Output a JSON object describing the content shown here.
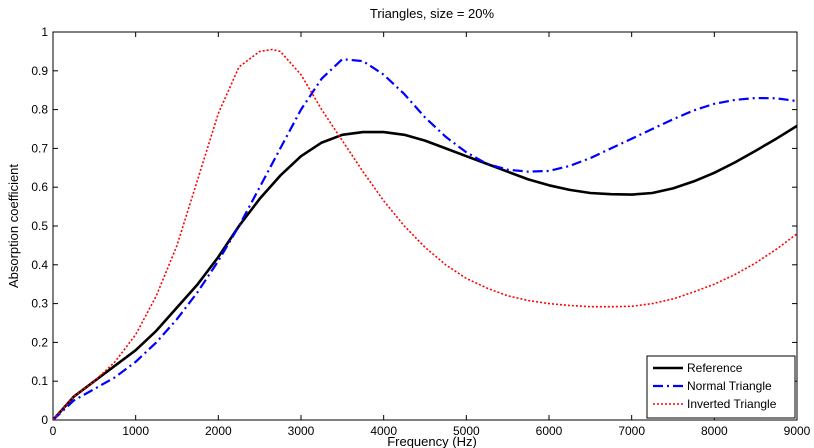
{
  "chart_data": {
    "type": "line",
    "title": "Triangles, size = 20%",
    "xlabel": "Frequency (Hz)",
    "ylabel": "Absorption coefficient",
    "xlim": [
      0,
      9000
    ],
    "ylim": [
      0,
      1
    ],
    "xticks": [
      0,
      1000,
      2000,
      3000,
      4000,
      5000,
      6000,
      7000,
      8000,
      9000
    ],
    "yticks": [
      0,
      0.1,
      0.2,
      0.3,
      0.4,
      0.5,
      0.6,
      0.7,
      0.8,
      0.9,
      1
    ],
    "xtick_labels": [
      "0",
      "1000",
      "2000",
      "3000",
      "4000",
      "5000",
      "6000",
      "7000",
      "8000",
      "9000"
    ],
    "ytick_labels": [
      "0",
      "0.1",
      "0.2",
      "0.3",
      "0.4",
      "0.5",
      "0.6",
      "0.7",
      "0.8",
      "0.9",
      "1"
    ],
    "grid": false,
    "legend_position": "bottom-right",
    "series": [
      {
        "name": "Reference",
        "color": "#000000",
        "style": "solid",
        "x": [
          0,
          250,
          500,
          750,
          1000,
          1250,
          1500,
          1750,
          2000,
          2250,
          2500,
          2750,
          3000,
          3250,
          3500,
          3750,
          4000,
          4250,
          4500,
          4750,
          5000,
          5250,
          5500,
          5750,
          6000,
          6250,
          6500,
          6750,
          7000,
          7250,
          7500,
          7750,
          8000,
          8250,
          8500,
          8750,
          9000
        ],
        "y": [
          0,
          0.06,
          0.1,
          0.14,
          0.18,
          0.23,
          0.29,
          0.35,
          0.42,
          0.5,
          0.57,
          0.63,
          0.68,
          0.715,
          0.735,
          0.742,
          0.742,
          0.735,
          0.72,
          0.7,
          0.68,
          0.66,
          0.64,
          0.62,
          0.605,
          0.593,
          0.585,
          0.582,
          0.581,
          0.585,
          0.597,
          0.615,
          0.637,
          0.664,
          0.694,
          0.725,
          0.758
        ]
      },
      {
        "name": "Normal Triangle",
        "color": "#0000ff",
        "style": "dashdot",
        "x": [
          0,
          250,
          500,
          750,
          1000,
          1250,
          1500,
          1750,
          2000,
          2250,
          2500,
          2750,
          3000,
          3250,
          3500,
          3750,
          4000,
          4250,
          4500,
          4750,
          5000,
          5250,
          5500,
          5750,
          6000,
          6250,
          6500,
          6750,
          7000,
          7250,
          7500,
          7750,
          8000,
          8250,
          8500,
          8750,
          9000
        ],
        "y": [
          0,
          0.05,
          0.08,
          0.11,
          0.15,
          0.2,
          0.26,
          0.33,
          0.41,
          0.5,
          0.6,
          0.7,
          0.8,
          0.88,
          0.93,
          0.925,
          0.89,
          0.84,
          0.78,
          0.73,
          0.69,
          0.66,
          0.645,
          0.64,
          0.642,
          0.655,
          0.675,
          0.7,
          0.725,
          0.75,
          0.775,
          0.798,
          0.815,
          0.825,
          0.83,
          0.829,
          0.822
        ]
      },
      {
        "name": "Inverted Triangle",
        "color": "#ff0000",
        "style": "dotted",
        "x": [
          0,
          250,
          500,
          750,
          1000,
          1250,
          1500,
          1750,
          2000,
          2250,
          2500,
          2650,
          2750,
          3000,
          3250,
          3500,
          3750,
          4000,
          4250,
          4500,
          4750,
          5000,
          5250,
          5500,
          5750,
          6000,
          6250,
          6500,
          6750,
          7000,
          7250,
          7500,
          7750,
          8000,
          8250,
          8500,
          8750,
          9000
        ],
        "y": [
          0,
          0.06,
          0.1,
          0.15,
          0.22,
          0.32,
          0.45,
          0.62,
          0.79,
          0.91,
          0.95,
          0.955,
          0.95,
          0.89,
          0.8,
          0.72,
          0.64,
          0.565,
          0.5,
          0.445,
          0.4,
          0.365,
          0.34,
          0.32,
          0.308,
          0.3,
          0.295,
          0.292,
          0.292,
          0.293,
          0.3,
          0.312,
          0.33,
          0.35,
          0.375,
          0.405,
          0.44,
          0.48
        ]
      }
    ]
  }
}
